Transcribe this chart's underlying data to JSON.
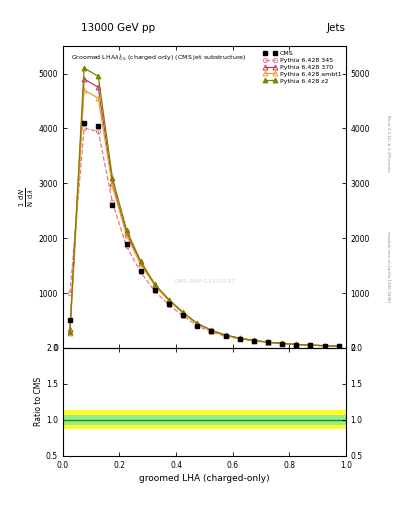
{
  "title_top": "13000 GeV pp",
  "title_right": "Jets",
  "plot_title": "Groomed LHA$\\lambda^{1}_{0.5}$ (charged only) (CMS jet substructure)",
  "xlabel": "groomed LHA (charged-only)",
  "ylabel_main": "1 / mathrm{N} / mathrm{d}sigma / mathrm{d}lambda",
  "ylabel_ratio": "Ratio to CMS",
  "right_label_top": "Rivet 3.1.10, ≥ 3.1M events",
  "right_label_bottom": "mcplots.cern.ch [arXiv:1306.3436]",
  "watermark": "CMS-SMP-11920187",
  "x_edges": [
    0.0,
    0.05,
    0.1,
    0.15,
    0.2,
    0.25,
    0.3,
    0.35,
    0.4,
    0.45,
    0.5,
    0.55,
    0.6,
    0.65,
    0.7,
    0.75,
    0.8,
    0.85,
    0.9,
    0.95,
    1.0
  ],
  "x_vals": [
    0.025,
    0.075,
    0.125,
    0.175,
    0.225,
    0.275,
    0.325,
    0.375,
    0.425,
    0.475,
    0.525,
    0.575,
    0.625,
    0.675,
    0.725,
    0.775,
    0.825,
    0.875,
    0.925,
    0.975
  ],
  "cms_y": [
    500,
    4100,
    4050,
    2600,
    1900,
    1400,
    1050,
    800,
    600,
    400,
    300,
    220,
    170,
    130,
    100,
    80,
    60,
    50,
    40,
    30
  ],
  "p345_y": [
    1000,
    4000,
    3950,
    2650,
    1850,
    1380,
    1030,
    790,
    580,
    400,
    290,
    210,
    165,
    128,
    98,
    78,
    58,
    48,
    38,
    28
  ],
  "p345_color": "#e87890",
  "p345_linestyle": "dashed",
  "p370_y": [
    350,
    4900,
    4750,
    3000,
    2100,
    1550,
    1150,
    870,
    640,
    440,
    320,
    230,
    175,
    135,
    103,
    82,
    62,
    51,
    40,
    31
  ],
  "p370_color": "#c83060",
  "pambt1_y": [
    280,
    4700,
    4550,
    2950,
    2050,
    1520,
    1130,
    860,
    630,
    435,
    316,
    228,
    172,
    133,
    102,
    81,
    61,
    50,
    39,
    30
  ],
  "pambt1_color": "#e8a030",
  "pz2_y": [
    290,
    5100,
    4950,
    3100,
    2150,
    1580,
    1160,
    880,
    645,
    445,
    322,
    233,
    178,
    137,
    105,
    84,
    63,
    52,
    41,
    32
  ],
  "pz2_color": "#808000",
  "ylim_main": [
    0,
    5500
  ],
  "yticks_main": [
    0,
    1000,
    2000,
    3000,
    4000,
    5000
  ],
  "xlim": [
    0,
    1
  ],
  "ylim_ratio": [
    0.5,
    2.0
  ],
  "yticks_ratio": [
    0.5,
    1.0,
    1.5,
    2.0
  ],
  "ratio_green_lo": 0.93,
  "ratio_green_hi": 1.07,
  "ratio_yellow_lo": 0.87,
  "ratio_yellow_hi": 1.13,
  "background_color": "#ffffff"
}
